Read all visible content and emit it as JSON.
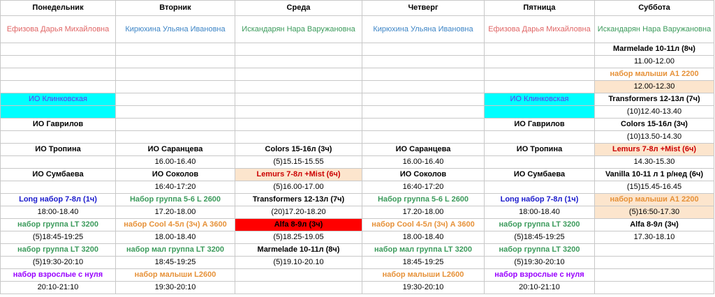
{
  "header": [
    "Понедельник",
    "Вторник",
    "Среда",
    "Четверг",
    "Пятница",
    "Суббота"
  ],
  "rows": [
    [
      {
        "t": "Ефизова Дарья Михайловна",
        "c": "#e06666"
      },
      {
        "t": "Кирюхина Ульяна Ивановна",
        "c": "#3d85c6"
      },
      {
        "t": "Искандарян Нара Варужановна",
        "c": "#3c9b5c"
      },
      {
        "t": "Кирюхина Ульяна Ивановна",
        "c": "#3d85c6"
      },
      {
        "t": "Ефизова Дарья Михайловна",
        "c": "#e06666"
      },
      {
        "t": "Искандарян Нара Варужановна",
        "c": "#3c9b5c"
      }
    ],
    [
      null,
      null,
      null,
      null,
      null,
      {
        "t": "Marmelade 10-11л (8ч)",
        "b": true
      }
    ],
    [
      null,
      null,
      null,
      null,
      null,
      "11.00-12.00"
    ],
    [
      null,
      null,
      null,
      null,
      null,
      {
        "t": "набор малыши А1 2200",
        "c": "#e69138",
        "b": true
      }
    ],
    [
      null,
      null,
      null,
      null,
      null,
      {
        "t": "12.00-12.30",
        "bg": "#fce5cd"
      }
    ],
    [
      {
        "t": "ИО Клинковская",
        "c": "#6633ee",
        "bg": "#00ffff"
      },
      null,
      null,
      null,
      {
        "t": "ИО Клинковская",
        "c": "#6633ee",
        "bg": "#00ffff"
      },
      {
        "t": "Transformers 12-13л (7ч)",
        "b": true
      }
    ],
    [
      {
        "bg": "#00ffff"
      },
      null,
      null,
      null,
      {
        "bg": "#00ffff"
      },
      "(10)12.40-13.40"
    ],
    [
      {
        "t": "ИО Гаврилов",
        "b": true
      },
      null,
      null,
      null,
      {
        "t": "ИО Гаврилов",
        "b": true
      },
      {
        "t": "Colors 15-16л (3ч)",
        "b": true
      }
    ],
    [
      null,
      null,
      null,
      null,
      null,
      "(10)13.50-14.30"
    ],
    [
      {
        "t": "ИО Тропина",
        "b": true
      },
      {
        "t": "ИО Саранцева",
        "b": true
      },
      {
        "t": "Colors 15-16л (3ч)",
        "b": true
      },
      {
        "t": "ИО Саранцева",
        "b": true
      },
      {
        "t": "ИО Тропина",
        "b": true
      },
      {
        "t": "Lemurs 7-8л +Mist (6ч)",
        "c": "#cc0000",
        "bg": "#fce5cd",
        "b": true
      }
    ],
    [
      null,
      "16.00-16.40",
      "(5)15.15-15.55",
      "16.00-16.40",
      null,
      "14.30-15.30"
    ],
    [
      {
        "t": "ИО Сумбаева",
        "b": true
      },
      {
        "t": "ИО Соколов",
        "b": true
      },
      {
        "t": "Lemurs 7-8л +Mist (6ч)",
        "c": "#cc0000",
        "bg": "#fce5cd",
        "b": true
      },
      {
        "t": "ИО Соколов",
        "b": true
      },
      {
        "t": "ИО Сумбаева",
        "b": true
      },
      {
        "t": "Vanilla 10-11 л 1 р/нед (6ч)",
        "b": true
      }
    ],
    [
      null,
      "16:40-17:20",
      "(5)16.00-17.00",
      "16:40-17:20",
      null,
      "(15)15.45-16.45"
    ],
    [
      {
        "t": "Long набор 7-8л (1ч)",
        "c": "#1a1acc",
        "b": true
      },
      {
        "t": "Набор группа 5-6 L 2600",
        "c": "#3c9b5c",
        "b": true
      },
      {
        "t": "Transformers 12-13л (7ч)",
        "b": true
      },
      {
        "t": "Набор группа 5-6 L 2600",
        "c": "#3c9b5c",
        "b": true
      },
      {
        "t": "Long набор 7-8л (1ч)",
        "c": "#1a1acc",
        "b": true
      },
      {
        "t": "набор малыши А1 2200",
        "c": "#e69138",
        "bg": "#fce5cd",
        "b": true
      }
    ],
    [
      "18:00-18.40",
      "17.20-18.00",
      "(20)17.20-18.20",
      "17.20-18.00",
      "18:00-18.40",
      {
        "t": "(5)16:50-17.30",
        "bg": "#fce5cd"
      }
    ],
    [
      {
        "t": "набор группа LT 3200",
        "c": "#3c9b5c",
        "b": true
      },
      {
        "t": "набор Cool 4-5л (3ч) A 3600",
        "c": "#e69138",
        "b": true
      },
      {
        "t": "Alfa 8-9л (3ч)",
        "bg": "#ff0000",
        "b": true
      },
      {
        "t": "набор Cool 4-5л (3ч) A 3600",
        "c": "#e69138",
        "b": true
      },
      {
        "t": "набор группа LT 3200",
        "c": "#3c9b5c",
        "b": true
      },
      {
        "t": "Alfa 8-9л (3ч)",
        "b": true
      }
    ],
    [
      "(5)18:45-19:25",
      "18.00-18.40",
      "(5)18.25-19.05",
      "18.00-18.40",
      "(5)18:45-19:25",
      "17.30-18.10"
    ],
    [
      {
        "t": "набор группа LT 3200",
        "c": "#3c9b5c",
        "b": true
      },
      {
        "t": "набор мал группа LT 3200",
        "c": "#3c9b5c",
        "b": true
      },
      {
        "t": "Marmelade 10-11л (8ч)",
        "b": true
      },
      {
        "t": "набор мал группа LT 3200",
        "c": "#3c9b5c",
        "b": true
      },
      {
        "t": "набор группа LT 3200",
        "c": "#3c9b5c",
        "b": true
      },
      null
    ],
    [
      "(5)19:30-20:10",
      "18:45-19:25",
      "(5)19.10-20.10",
      "18:45-19:25",
      "(5)19:30-20:10",
      null
    ],
    [
      {
        "t": "набор взрослые с нуля",
        "c": "#9900ff",
        "b": true
      },
      {
        "t": "набор малыши L2600",
        "c": "#e69138",
        "b": true
      },
      null,
      {
        "t": "набор малыши L2600",
        "c": "#e69138",
        "b": true
      },
      {
        "t": "набор взрослые с нуля",
        "c": "#9900ff",
        "b": true
      },
      null
    ],
    [
      "20:10-21:10",
      "19:30-20:10",
      null,
      "19:30-20:10",
      "20:10-21:10",
      null
    ]
  ]
}
